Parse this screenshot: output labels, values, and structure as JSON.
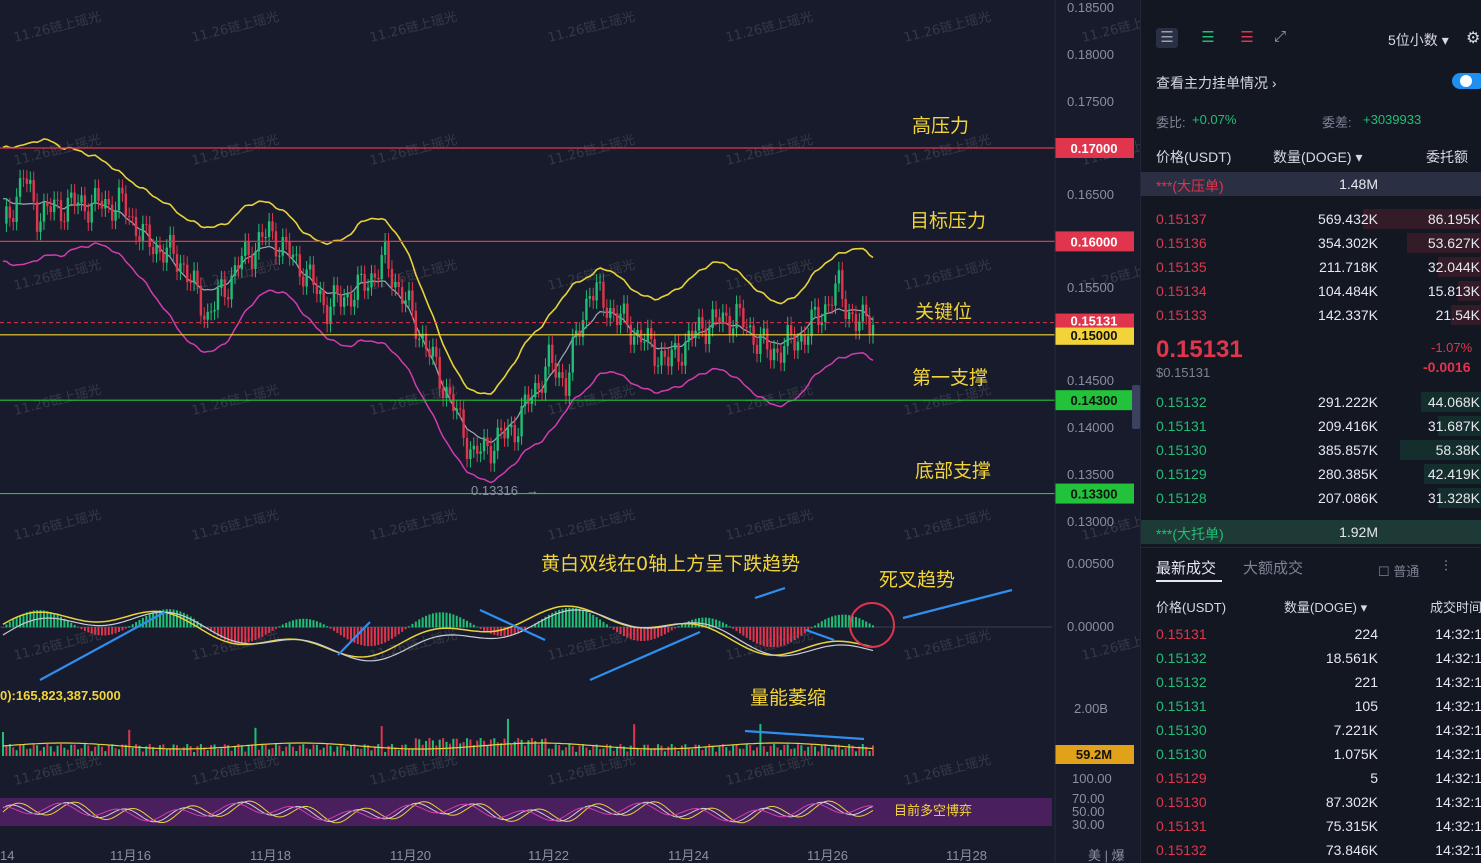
{
  "chart": {
    "price_axis": [
      "0.18500",
      "0.18000",
      "0.17500",
      "0.16500",
      "0.15500",
      "0.14500",
      "0.14000",
      "0.13500",
      "0.13000"
    ],
    "macd_axis": [
      "0.00500",
      "0.00000"
    ],
    "volume_axis": [
      "2.00B"
    ],
    "rsi_axis": [
      "100.00",
      "70.00",
      "50.00",
      "30.00"
    ],
    "date_axis": [
      "14",
      "11月16",
      "11月18",
      "11月20",
      "11月22",
      "11月24",
      "11月26",
      "11月28"
    ],
    "corner_label": "美 | 爆",
    "levels": [
      {
        "value": "0.17000",
        "label": "高压力",
        "color": "#e0354d"
      },
      {
        "value": "0.16000",
        "label": "目标压力",
        "color": "#e0354d"
      },
      {
        "value": "0.15000",
        "label": "关键位",
        "color": "#f2d43a"
      },
      {
        "value": "0.14300",
        "label": "第一支撑",
        "color": "#22c23a"
      },
      {
        "value": "0.13300",
        "label": "底部支撑",
        "color": "#22c23a"
      }
    ],
    "current_price_tag": "0.15131",
    "low_marker": "0.13316",
    "macd_annotation": "黄白双线在0轴上方呈下跌趋势",
    "deathcross_annotation": "死叉趋势",
    "volume_annotation": "量能萎缩",
    "volume_info": "0):165,823,387.5000",
    "volume_tag": "59.2M",
    "rsi_annotation": "目前多空博弈",
    "watermark": "11.26链上瑶光"
  },
  "panel": {
    "decimal_select": "5位小数",
    "main_orders_label": "查看主力挂单情况",
    "ratio_label": "委比:",
    "ratio_value": "+0.07%",
    "diff_label": "委差:",
    "diff_value": "+3039933",
    "book_headers": {
      "price": "价格(USDT)",
      "qty": "数量(DOGE)",
      "amount": "委托额"
    },
    "ask_big_label": "***(大压单)",
    "ask_big_qty": "1.48M",
    "asks": [
      {
        "price": "0.15137",
        "qty": "569.432K",
        "amt": "86.195K",
        "depth": 0.35
      },
      {
        "price": "0.15136",
        "qty": "354.302K",
        "amt": "53.627K",
        "depth": 0.22
      },
      {
        "price": "0.15135",
        "qty": "211.718K",
        "amt": "32.044K",
        "depth": 0.13
      },
      {
        "price": "0.15134",
        "qty": "104.484K",
        "amt": "15.813K",
        "depth": 0.07
      },
      {
        "price": "0.15133",
        "qty": "142.337K",
        "amt": "21.54K",
        "depth": 0.09
      }
    ],
    "last_price": "0.15131",
    "last_price_usd": "$0.15131",
    "change_pct": "-1.07%",
    "change_abs": "-0.0016",
    "bids": [
      {
        "price": "0.15132",
        "qty": "291.222K",
        "amt": "44.068K",
        "depth": 0.18
      },
      {
        "price": "0.15131",
        "qty": "209.416K",
        "amt": "31.687K",
        "depth": 0.13
      },
      {
        "price": "0.15130",
        "qty": "385.857K",
        "amt": "58.38K",
        "depth": 0.24
      },
      {
        "price": "0.15129",
        "qty": "280.385K",
        "amt": "42.419K",
        "depth": 0.17
      },
      {
        "price": "0.15128",
        "qty": "207.086K",
        "amt": "31.328K",
        "depth": 0.13
      }
    ],
    "bid_big_label": "***(大托单)",
    "bid_big_qty": "1.92M",
    "tabs": {
      "latest": "最新成交",
      "large": "大额成交"
    },
    "normal_label": "普通",
    "trade_headers": {
      "price": "价格(USDT)",
      "qty": "数量(DOGE)",
      "time": "成交时间"
    },
    "trades": [
      {
        "price": "0.15131",
        "side": "sell",
        "qty": "224",
        "time": "14:32:1"
      },
      {
        "price": "0.15132",
        "side": "buy",
        "qty": "18.561K",
        "time": "14:32:1"
      },
      {
        "price": "0.15132",
        "side": "buy",
        "qty": "221",
        "time": "14:32:1"
      },
      {
        "price": "0.15131",
        "side": "buy",
        "qty": "105",
        "time": "14:32:1"
      },
      {
        "price": "0.15130",
        "side": "buy",
        "qty": "7.221K",
        "time": "14:32:1"
      },
      {
        "price": "0.15130",
        "side": "buy",
        "qty": "1.075K",
        "time": "14:32:1"
      },
      {
        "price": "0.15129",
        "side": "sell",
        "qty": "5",
        "time": "14:32:1"
      },
      {
        "price": "0.15130",
        "side": "sell",
        "qty": "87.302K",
        "time": "14:32:1"
      },
      {
        "price": "0.15131",
        "side": "sell",
        "qty": "75.315K",
        "time": "14:32:1"
      },
      {
        "price": "0.15132",
        "side": "sell",
        "qty": "73.846K",
        "time": "14:32:1"
      }
    ]
  }
}
